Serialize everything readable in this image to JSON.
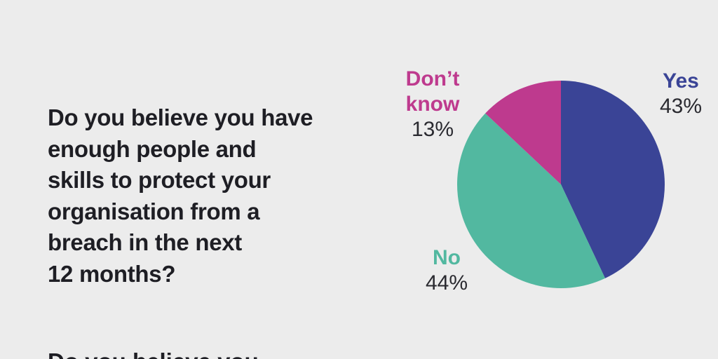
{
  "question": {
    "lines": [
      "Do you believe you have",
      "enough people and",
      "skills to protect your",
      "organisation from a",
      "breach in the next",
      "12 months?"
    ]
  },
  "chart_data": {
    "type": "pie",
    "slices": [
      {
        "label": "Yes",
        "value": 43,
        "value_label": "43%",
        "color": "#3a4496"
      },
      {
        "label": "No",
        "value": 44,
        "value_label": "44%",
        "color": "#52b8a0"
      },
      {
        "label": "Don’t know",
        "value": 13,
        "value_label": "13%",
        "color": "#be3a8e"
      }
    ]
  },
  "next_section": {
    "heading_partial": "Do you believe you"
  }
}
